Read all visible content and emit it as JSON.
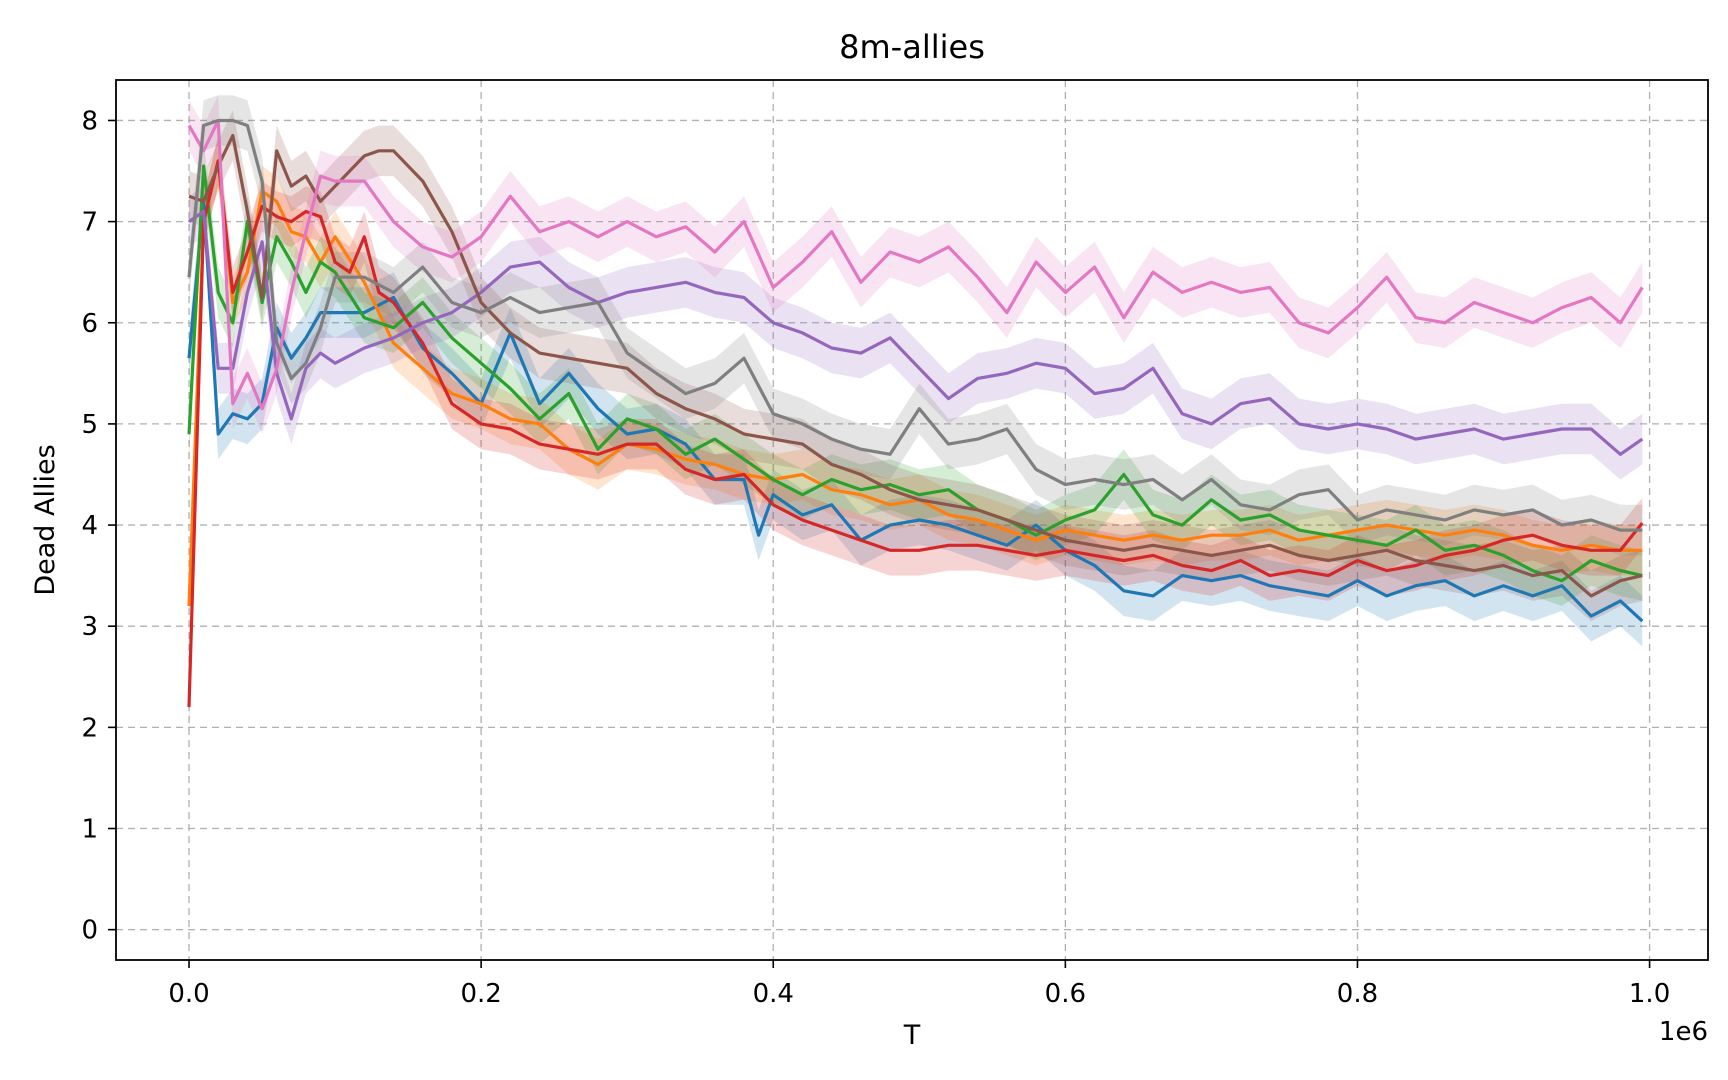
{
  "chart_data": {
    "type": "line",
    "title": "8m-allies",
    "xlabel": "T",
    "ylabel": "Dead Allies",
    "x_offset_label": "1e6",
    "xlim": [
      -0.05,
      1.04
    ],
    "ylim": [
      -0.3,
      8.4
    ],
    "xticks": [
      0.0,
      0.2,
      0.4,
      0.6,
      0.8,
      1.0
    ],
    "xtick_labels": [
      "0.0",
      "0.2",
      "0.4",
      "0.6",
      "0.8",
      "1.0"
    ],
    "yticks": [
      0,
      1,
      2,
      3,
      4,
      5,
      6,
      7,
      8
    ],
    "ytick_labels": [
      "0",
      "1",
      "2",
      "3",
      "4",
      "5",
      "6",
      "7",
      "8"
    ],
    "grid": true,
    "legend": "none",
    "band_half_width": 0.25,
    "series": [
      {
        "color": "#1f77b4",
        "x": [
          0.0,
          0.01,
          0.02,
          0.03,
          0.04,
          0.05,
          0.06,
          0.07,
          0.08,
          0.09,
          0.1,
          0.12,
          0.14,
          0.16,
          0.18,
          0.2,
          0.22,
          0.24,
          0.26,
          0.28,
          0.3,
          0.32,
          0.34,
          0.36,
          0.38,
          0.39,
          0.4,
          0.42,
          0.44,
          0.46,
          0.48,
          0.5,
          0.52,
          0.54,
          0.56,
          0.58,
          0.6,
          0.62,
          0.64,
          0.66,
          0.68,
          0.7,
          0.72,
          0.74,
          0.76,
          0.78,
          0.8,
          0.82,
          0.84,
          0.86,
          0.88,
          0.9,
          0.92,
          0.94,
          0.96,
          0.98,
          0.995
        ],
        "y": [
          5.65,
          7.2,
          4.9,
          5.1,
          5.05,
          5.2,
          5.95,
          5.65,
          5.85,
          6.1,
          6.1,
          6.1,
          6.25,
          5.75,
          5.5,
          5.2,
          5.9,
          5.2,
          5.5,
          5.15,
          4.9,
          4.95,
          4.8,
          4.45,
          4.45,
          3.9,
          4.3,
          4.1,
          4.2,
          3.85,
          4.0,
          4.05,
          4.0,
          3.9,
          3.8,
          4.0,
          3.75,
          3.6,
          3.35,
          3.3,
          3.5,
          3.45,
          3.5,
          3.4,
          3.35,
          3.3,
          3.45,
          3.3,
          3.4,
          3.45,
          3.3,
          3.4,
          3.3,
          3.4,
          3.1,
          3.25,
          3.05
        ]
      },
      {
        "color": "#ff7f0e",
        "x": [
          0.0,
          0.01,
          0.02,
          0.03,
          0.04,
          0.05,
          0.06,
          0.07,
          0.08,
          0.09,
          0.1,
          0.12,
          0.14,
          0.16,
          0.18,
          0.2,
          0.22,
          0.24,
          0.26,
          0.28,
          0.3,
          0.32,
          0.34,
          0.36,
          0.38,
          0.4,
          0.42,
          0.44,
          0.46,
          0.48,
          0.5,
          0.52,
          0.54,
          0.56,
          0.58,
          0.6,
          0.62,
          0.64,
          0.66,
          0.68,
          0.7,
          0.72,
          0.74,
          0.76,
          0.78,
          0.8,
          0.82,
          0.84,
          0.86,
          0.88,
          0.9,
          0.92,
          0.94,
          0.96,
          0.98,
          0.995
        ],
        "y": [
          3.2,
          7.0,
          7.6,
          6.2,
          6.5,
          7.3,
          7.2,
          6.9,
          6.85,
          6.6,
          6.85,
          6.4,
          5.8,
          5.55,
          5.3,
          5.2,
          5.05,
          5.0,
          4.75,
          4.6,
          4.8,
          4.75,
          4.65,
          4.6,
          4.5,
          4.45,
          4.5,
          4.35,
          4.3,
          4.2,
          4.25,
          4.1,
          4.05,
          3.95,
          3.85,
          3.95,
          3.9,
          3.85,
          3.9,
          3.85,
          3.9,
          3.9,
          3.95,
          3.85,
          3.9,
          3.95,
          4.0,
          3.95,
          3.9,
          3.95,
          3.9,
          3.8,
          3.75,
          3.8,
          3.75,
          3.75
        ]
      },
      {
        "color": "#2ca02c",
        "x": [
          0.0,
          0.01,
          0.02,
          0.03,
          0.04,
          0.05,
          0.06,
          0.07,
          0.08,
          0.09,
          0.1,
          0.12,
          0.14,
          0.16,
          0.18,
          0.2,
          0.22,
          0.24,
          0.26,
          0.28,
          0.3,
          0.32,
          0.34,
          0.36,
          0.38,
          0.4,
          0.42,
          0.44,
          0.46,
          0.48,
          0.5,
          0.52,
          0.54,
          0.56,
          0.58,
          0.6,
          0.62,
          0.64,
          0.66,
          0.68,
          0.7,
          0.72,
          0.74,
          0.76,
          0.78,
          0.8,
          0.82,
          0.84,
          0.86,
          0.88,
          0.9,
          0.92,
          0.94,
          0.96,
          0.98,
          0.995
        ],
        "y": [
          4.9,
          7.55,
          6.3,
          6.0,
          7.0,
          6.2,
          6.85,
          6.6,
          6.3,
          6.6,
          6.5,
          6.05,
          5.95,
          6.2,
          5.85,
          5.6,
          5.35,
          5.05,
          5.3,
          4.75,
          5.05,
          4.95,
          4.7,
          4.85,
          4.65,
          4.45,
          4.3,
          4.45,
          4.35,
          4.4,
          4.3,
          4.35,
          4.15,
          4.05,
          3.9,
          4.05,
          4.15,
          4.5,
          4.1,
          4.0,
          4.25,
          4.05,
          4.1,
          3.95,
          3.9,
          3.85,
          3.8,
          3.95,
          3.75,
          3.8,
          3.7,
          3.55,
          3.45,
          3.65,
          3.55,
          3.5
        ]
      },
      {
        "color": "#d62728",
        "x": [
          0.0,
          0.01,
          0.02,
          0.03,
          0.04,
          0.05,
          0.06,
          0.07,
          0.08,
          0.09,
          0.1,
          0.11,
          0.12,
          0.13,
          0.14,
          0.16,
          0.18,
          0.2,
          0.22,
          0.24,
          0.26,
          0.28,
          0.3,
          0.32,
          0.34,
          0.36,
          0.38,
          0.4,
          0.42,
          0.44,
          0.46,
          0.48,
          0.5,
          0.52,
          0.54,
          0.56,
          0.58,
          0.6,
          0.62,
          0.64,
          0.66,
          0.68,
          0.7,
          0.72,
          0.74,
          0.76,
          0.78,
          0.8,
          0.82,
          0.84,
          0.86,
          0.88,
          0.9,
          0.92,
          0.94,
          0.96,
          0.98,
          0.995
        ],
        "y": [
          2.2,
          7.0,
          7.6,
          6.3,
          6.7,
          7.15,
          7.05,
          7.0,
          7.1,
          7.05,
          6.6,
          6.5,
          6.85,
          6.3,
          6.2,
          5.8,
          5.2,
          5.0,
          4.95,
          4.8,
          4.75,
          4.7,
          4.8,
          4.8,
          4.55,
          4.45,
          4.5,
          4.2,
          4.05,
          3.95,
          3.85,
          3.75,
          3.75,
          3.8,
          3.8,
          3.75,
          3.7,
          3.75,
          3.7,
          3.65,
          3.7,
          3.6,
          3.55,
          3.65,
          3.5,
          3.55,
          3.5,
          3.65,
          3.55,
          3.6,
          3.7,
          3.75,
          3.85,
          3.9,
          3.8,
          3.75,
          3.75,
          4.02
        ]
      },
      {
        "color": "#9467bd",
        "x": [
          0.0,
          0.01,
          0.02,
          0.03,
          0.04,
          0.05,
          0.06,
          0.07,
          0.08,
          0.09,
          0.1,
          0.12,
          0.14,
          0.16,
          0.18,
          0.2,
          0.22,
          0.24,
          0.26,
          0.28,
          0.3,
          0.32,
          0.34,
          0.36,
          0.38,
          0.4,
          0.42,
          0.44,
          0.46,
          0.48,
          0.5,
          0.52,
          0.54,
          0.56,
          0.58,
          0.6,
          0.62,
          0.64,
          0.66,
          0.68,
          0.7,
          0.72,
          0.74,
          0.76,
          0.78,
          0.8,
          0.82,
          0.84,
          0.86,
          0.88,
          0.9,
          0.92,
          0.94,
          0.96,
          0.98,
          0.995
        ],
        "y": [
          7.0,
          7.1,
          5.55,
          5.55,
          6.3,
          6.8,
          5.5,
          5.05,
          5.55,
          5.7,
          5.6,
          5.75,
          5.85,
          6.0,
          6.1,
          6.3,
          6.55,
          6.6,
          6.35,
          6.2,
          6.3,
          6.35,
          6.4,
          6.3,
          6.25,
          6.0,
          5.9,
          5.75,
          5.7,
          5.85,
          5.55,
          5.25,
          5.45,
          5.5,
          5.6,
          5.55,
          5.3,
          5.35,
          5.55,
          5.1,
          5.0,
          5.2,
          5.25,
          5.0,
          4.95,
          5.0,
          4.95,
          4.85,
          4.9,
          4.95,
          4.85,
          4.9,
          4.95,
          4.95,
          4.7,
          4.85
        ]
      },
      {
        "color": "#8c564b",
        "x": [
          0.0,
          0.01,
          0.02,
          0.03,
          0.04,
          0.05,
          0.06,
          0.07,
          0.08,
          0.09,
          0.1,
          0.12,
          0.13,
          0.14,
          0.16,
          0.18,
          0.2,
          0.22,
          0.24,
          0.26,
          0.28,
          0.3,
          0.32,
          0.34,
          0.36,
          0.38,
          0.4,
          0.42,
          0.44,
          0.46,
          0.48,
          0.5,
          0.52,
          0.54,
          0.56,
          0.58,
          0.6,
          0.62,
          0.64,
          0.66,
          0.68,
          0.7,
          0.72,
          0.74,
          0.76,
          0.78,
          0.8,
          0.82,
          0.84,
          0.86,
          0.88,
          0.9,
          0.92,
          0.94,
          0.96,
          0.98,
          0.995
        ],
        "y": [
          7.25,
          7.2,
          7.55,
          7.85,
          7.1,
          6.25,
          7.7,
          7.35,
          7.45,
          7.2,
          7.35,
          7.65,
          7.7,
          7.7,
          7.4,
          6.9,
          6.2,
          5.9,
          5.7,
          5.65,
          5.6,
          5.55,
          5.3,
          5.15,
          5.05,
          4.9,
          4.85,
          4.8,
          4.6,
          4.5,
          4.35,
          4.25,
          4.2,
          4.15,
          4.05,
          3.95,
          3.85,
          3.8,
          3.75,
          3.8,
          3.75,
          3.7,
          3.75,
          3.8,
          3.7,
          3.65,
          3.7,
          3.75,
          3.65,
          3.6,
          3.55,
          3.6,
          3.5,
          3.55,
          3.3,
          3.45,
          3.5
        ]
      },
      {
        "color": "#e377c2",
        "x": [
          0.0,
          0.01,
          0.02,
          0.03,
          0.04,
          0.05,
          0.06,
          0.07,
          0.08,
          0.09,
          0.1,
          0.12,
          0.14,
          0.16,
          0.18,
          0.2,
          0.22,
          0.24,
          0.26,
          0.28,
          0.3,
          0.32,
          0.34,
          0.36,
          0.38,
          0.4,
          0.42,
          0.44,
          0.46,
          0.48,
          0.5,
          0.52,
          0.54,
          0.56,
          0.58,
          0.6,
          0.62,
          0.64,
          0.66,
          0.68,
          0.7,
          0.72,
          0.74,
          0.76,
          0.78,
          0.8,
          0.82,
          0.84,
          0.86,
          0.88,
          0.9,
          0.92,
          0.94,
          0.96,
          0.98,
          0.995
        ],
        "y": [
          7.95,
          7.7,
          8.0,
          5.2,
          5.5,
          5.15,
          5.55,
          6.3,
          6.9,
          7.45,
          7.4,
          7.4,
          7.0,
          6.75,
          6.65,
          6.85,
          7.25,
          6.9,
          7.0,
          6.85,
          7.0,
          6.85,
          6.95,
          6.7,
          7.0,
          6.35,
          6.6,
          6.9,
          6.4,
          6.7,
          6.6,
          6.75,
          6.45,
          6.1,
          6.6,
          6.3,
          6.55,
          6.05,
          6.5,
          6.3,
          6.4,
          6.3,
          6.35,
          6.0,
          5.9,
          6.15,
          6.45,
          6.05,
          6.0,
          6.2,
          6.1,
          6.0,
          6.15,
          6.25,
          6.0,
          6.35
        ]
      },
      {
        "color": "#7f7f7f",
        "x": [
          0.0,
          0.01,
          0.02,
          0.03,
          0.04,
          0.05,
          0.06,
          0.07,
          0.08,
          0.09,
          0.1,
          0.12,
          0.14,
          0.16,
          0.18,
          0.2,
          0.22,
          0.24,
          0.26,
          0.28,
          0.3,
          0.32,
          0.34,
          0.36,
          0.38,
          0.4,
          0.42,
          0.44,
          0.46,
          0.48,
          0.5,
          0.52,
          0.54,
          0.56,
          0.58,
          0.6,
          0.62,
          0.64,
          0.66,
          0.68,
          0.7,
          0.72,
          0.74,
          0.76,
          0.78,
          0.8,
          0.82,
          0.84,
          0.86,
          0.88,
          0.9,
          0.92,
          0.94,
          0.96,
          0.98,
          0.995
        ],
        "y": [
          6.45,
          7.95,
          8.0,
          8.0,
          7.95,
          7.4,
          5.8,
          5.45,
          5.6,
          5.95,
          6.45,
          6.45,
          6.3,
          6.55,
          6.2,
          6.1,
          6.25,
          6.1,
          6.15,
          6.2,
          5.7,
          5.5,
          5.3,
          5.4,
          5.65,
          5.1,
          5.0,
          4.85,
          4.75,
          4.7,
          5.15,
          4.8,
          4.85,
          4.95,
          4.55,
          4.4,
          4.45,
          4.4,
          4.45,
          4.25,
          4.45,
          4.2,
          4.15,
          4.3,
          4.35,
          4.05,
          4.15,
          4.1,
          4.05,
          4.15,
          4.1,
          4.15,
          4.0,
          4.05,
          3.95,
          3.95
        ]
      }
    ]
  }
}
